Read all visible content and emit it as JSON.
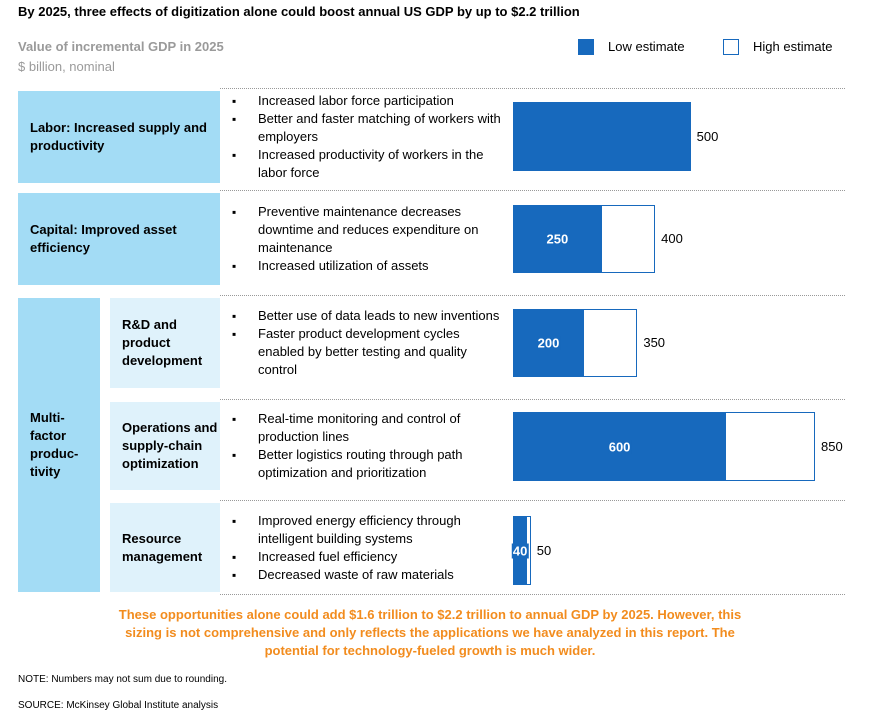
{
  "chart_data": {
    "type": "bar",
    "title": "By 2025, three effects of digitization alone could boost annual US GDP by up to $2.2 trillion",
    "subtitle": "Value of incremental GDP in 2025",
    "unit_label": "$ billion, nominal",
    "group_label": "Multi-\nfactor\nproduc-\ntivity",
    "categories": [
      "Labor: Increased supply and productivity",
      "Capital: Improved asset efficiency",
      "R&D and product development",
      "Operations and supply-chain optimization",
      "Resource management"
    ],
    "bullets": [
      [
        "Increased labor force participation",
        "Better and faster matching of workers with employers",
        "Increased productivity of workers in the labor force"
      ],
      [
        "Preventive maintenance decreases downtime and reduces expenditure on maintenance",
        "Increased utilization of assets"
      ],
      [
        "Better use of data leads to new inventions",
        "Faster product development cycles enabled by better testing and quality control"
      ],
      [
        "Real-time monitoring and control of production lines",
        "Better logistics routing through path optimization and prioritization"
      ],
      [
        "Improved energy efficiency through intelligent building systems",
        "Increased fuel efficiency",
        "Decreased waste of raw materials"
      ]
    ],
    "series": [
      {
        "name": "Low estimate",
        "color": "#1769bd",
        "values": [
          500,
          250,
          200,
          600,
          40
        ]
      },
      {
        "name": "High estimate",
        "color": "#ffffff",
        "values": [
          500,
          400,
          350,
          850,
          50
        ]
      }
    ],
    "callout": "These opportunities alone could add $1.6 trillion to $2.2 trillion to annual GDP by 2025. However, this sizing is not comprehensive and only reflects the applications we have analyzed in this report. The potential for technology-fueled growth is much wider.",
    "note": "NOTE: Numbers may not sum due to rounding.",
    "source": "SOURCE:  McKinsey Global Institute analysis"
  }
}
